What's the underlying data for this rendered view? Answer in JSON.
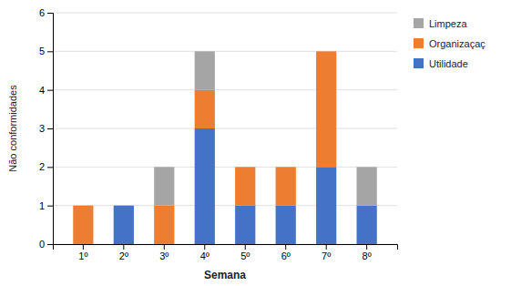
{
  "chart_data": {
    "type": "bar",
    "stacked": true,
    "categories": [
      "1º",
      "2º",
      "3º",
      "4º",
      "5º",
      "6º",
      "7º",
      "8º"
    ],
    "series": [
      {
        "name": "Utilidade",
        "color": "#4472C4",
        "values": [
          0,
          1,
          0,
          3,
          1,
          1,
          2,
          1
        ]
      },
      {
        "name": "Organizaçaç",
        "color": "#ED7D31",
        "values": [
          1,
          0,
          1,
          1,
          1,
          1,
          3,
          0
        ]
      },
      {
        "name": "Limpeza",
        "color": "#A5A5A5",
        "values": [
          0,
          0,
          1,
          1,
          0,
          0,
          0,
          1
        ]
      }
    ],
    "xlabel": "Semana",
    "ylabel": "Não conformidades",
    "ylim": [
      0,
      6
    ],
    "yticks": [
      0,
      1,
      2,
      3,
      4,
      5,
      6
    ],
    "grid": true,
    "legend": "right"
  }
}
